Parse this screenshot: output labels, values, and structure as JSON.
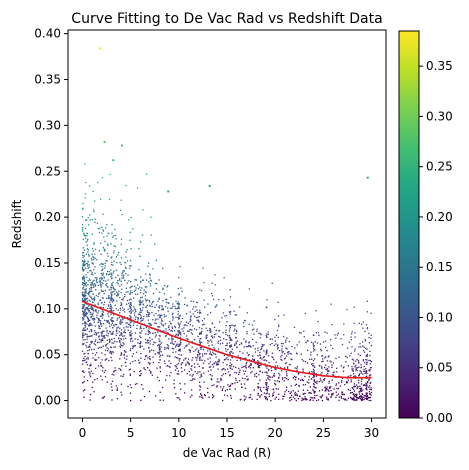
{
  "chart_data": {
    "type": "scatter",
    "title": "Curve Fitting to De Vac Rad vs Redshift Data",
    "xlabel": "de Vac Rad (R)",
    "ylabel": "Redshift",
    "xlim": [
      -1.5,
      31.5
    ],
    "ylim": [
      -0.019,
      0.404
    ],
    "xticks": [
      0,
      5,
      10,
      15,
      20,
      25,
      30
    ],
    "yticks": [
      0.0,
      0.05,
      0.1,
      0.15,
      0.2,
      0.25,
      0.3,
      0.35,
      0.4
    ],
    "ytick_labels": [
      "0.00",
      "0.05",
      "0.10",
      "0.15",
      "0.20",
      "0.25",
      "0.30",
      "0.35",
      "0.40"
    ],
    "grid": false,
    "colormap": "viridis",
    "colorbar": {
      "min": 0.0,
      "max": 0.385,
      "ticks": [
        0.0,
        0.05,
        0.1,
        0.15,
        0.2,
        0.25,
        0.3,
        0.35
      ],
      "tick_labels": [
        "0.00",
        "0.05",
        "0.10",
        "0.15",
        "0.20",
        "0.25",
        "0.30",
        "0.35"
      ]
    },
    "fit_curve": {
      "color": "#e8191b",
      "x": [
        0,
        2.5,
        5,
        7.5,
        10,
        12.5,
        15,
        17.5,
        20,
        22.5,
        25,
        27.5,
        30
      ],
      "y": [
        0.108,
        0.098,
        0.088,
        0.078,
        0.068,
        0.059,
        0.05,
        0.043,
        0.036,
        0.031,
        0.027,
        0.025,
        0.025
      ]
    },
    "highlighted_points": [
      {
        "x": 1.8,
        "y": 0.384
      },
      {
        "x": 2.3,
        "y": 0.282
      },
      {
        "x": 4.1,
        "y": 0.278
      },
      {
        "x": 3.2,
        "y": 0.262
      },
      {
        "x": 13.2,
        "y": 0.234
      },
      {
        "x": 29.6,
        "y": 0.243
      },
      {
        "x": 8.9,
        "y": 0.228
      }
    ],
    "vertical_streak_x": [
      2,
      3,
      4,
      5,
      6,
      7,
      8,
      10,
      12.2,
      15.3,
      19.1,
      24,
      29.5
    ],
    "point_count_estimate": 3000
  }
}
